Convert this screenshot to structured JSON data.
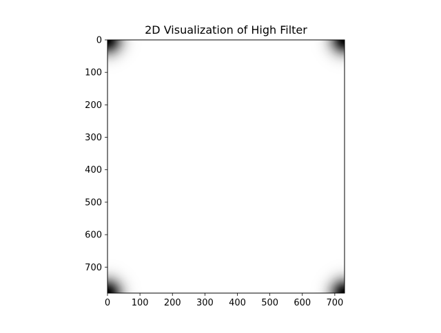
{
  "chart_data": {
    "type": "heatmap",
    "title": "2D Visualization of High Filter",
    "xlabel": "",
    "ylabel": "",
    "xlim": [
      0,
      730
    ],
    "ylim": [
      780,
      0
    ],
    "x_ticks": [
      0,
      100,
      200,
      300,
      400,
      500,
      600,
      700
    ],
    "y_ticks": [
      0,
      100,
      200,
      300,
      400,
      500,
      600,
      700
    ],
    "colormap": "gray",
    "value_range": [
      0,
      1
    ],
    "image_size": {
      "rows": 780,
      "cols": 730
    },
    "filter": {
      "kind": "gaussian-highpass",
      "dark_corners": [
        "top-left",
        "top-right",
        "bottom-left",
        "bottom-right"
      ],
      "sigma": 30
    },
    "grid": false,
    "legend": "none"
  }
}
